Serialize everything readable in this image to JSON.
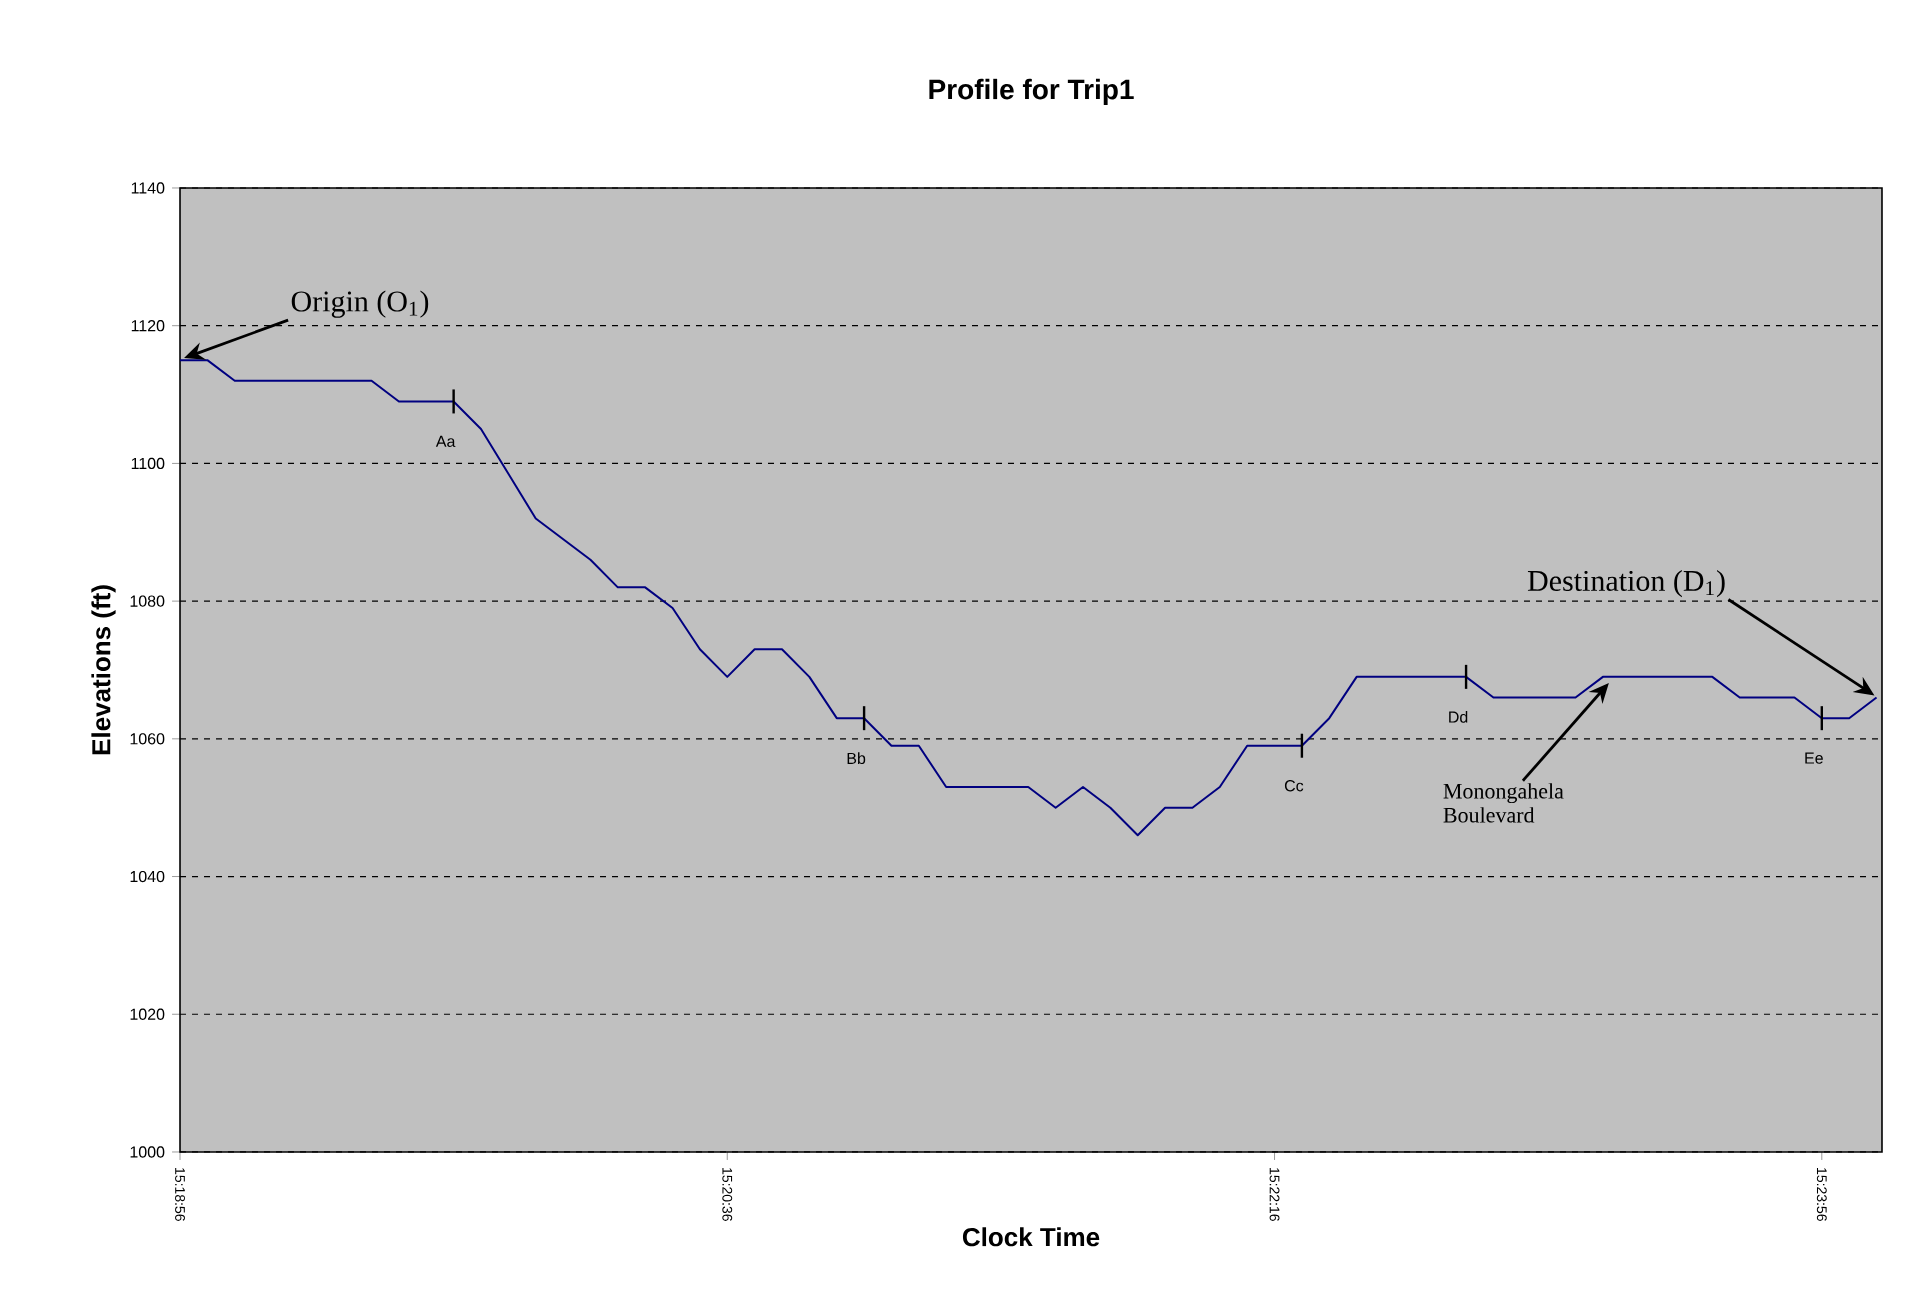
{
  "chart_data": {
    "type": "line",
    "title": "Profile for Trip1",
    "xlabel": "Clock Time",
    "ylabel": "Elevations (ft)",
    "x": [
      15.315556,
      15.316944,
      15.318333,
      15.325278,
      15.326667,
      15.329444,
      15.330833,
      15.333611,
      15.336389,
      15.337778,
      15.339167,
      15.340556,
      15.341944,
      15.343333,
      15.344722,
      15.346111,
      15.3475,
      15.348889,
      15.350278,
      15.351667,
      15.353056,
      15.354444,
      15.358611,
      15.36,
      15.361389,
      15.362778,
      15.364167,
      15.365556,
      15.366944,
      15.368333,
      15.369722,
      15.3725,
      15.373889,
      15.375278,
      15.380833,
      15.382222,
      15.386389,
      15.387778,
      15.393333,
      15.394722,
      15.3975,
      15.398889,
      15.400278,
      15.401667
    ],
    "values": [
      1115,
      1115,
      1112,
      1112,
      1109,
      1109,
      1105,
      1092,
      1086,
      1082,
      1082,
      1079,
      1073,
      1069,
      1073,
      1073,
      1069,
      1063,
      1063,
      1059,
      1059,
      1053,
      1053,
      1050,
      1053,
      1050,
      1046,
      1050,
      1050,
      1053,
      1059,
      1059,
      1063,
      1069,
      1069,
      1066,
      1066,
      1069,
      1069,
      1066,
      1066,
      1063,
      1063,
      1066
    ],
    "color": "#000080",
    "xlim": [
      15.315556,
      15.401944
    ],
    "xticks": [
      {
        "value": 15.315556,
        "label": "15:18:56"
      },
      {
        "value": 15.343333,
        "label": "15:20:36"
      },
      {
        "value": 15.371111,
        "label": "15:22:16"
      },
      {
        "value": 15.398889,
        "label": "15:23:56"
      }
    ],
    "ylim": [
      1000,
      1140
    ],
    "yticks": [
      1000,
      1020,
      1040,
      1060,
      1080,
      1100,
      1120,
      1140
    ],
    "grid": "y",
    "marker": "none",
    "line_style": "solid",
    "annotations": [
      {
        "text": "Origin (O$_{1}$)",
        "x": 15.315556,
        "y": 1115
      },
      {
        "text": "Destination (D$_{1}$)",
        "x": 15.401667,
        "y": 1066
      },
      {
        "text": "Monongahela Boulevard",
        "x": 15.387778,
        "y": 1069
      },
      {
        "text": "Aa",
        "x": 15.329444,
        "y": 1109
      },
      {
        "text": "Bb",
        "x": 15.350278,
        "y": 1063
      },
      {
        "text": "Cc",
        "x": 15.3725,
        "y": 1059
      },
      {
        "text": "Dd",
        "x": 15.380833,
        "y": 1069
      },
      {
        "text": "Ee",
        "x": 15.398889,
        "y": 1063
      }
    ]
  }
}
